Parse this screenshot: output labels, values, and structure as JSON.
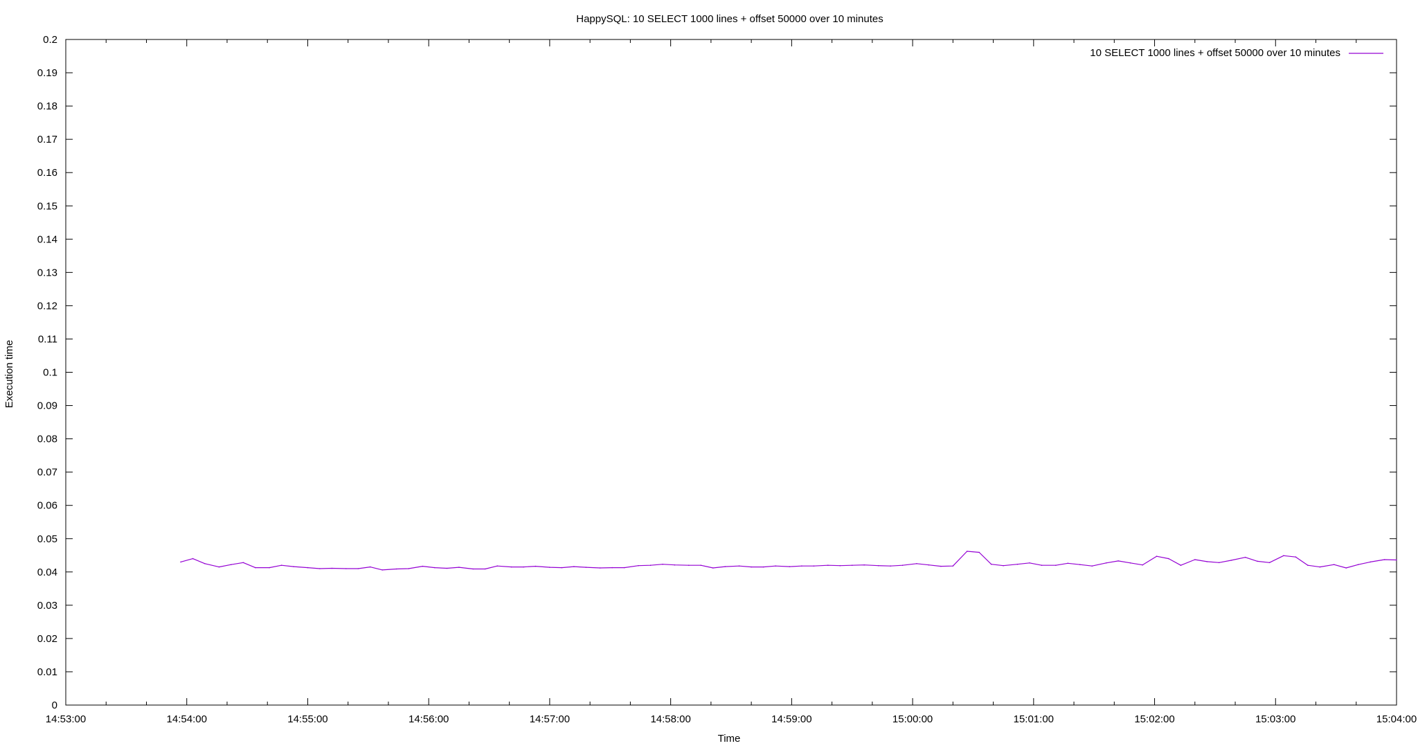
{
  "chart_data": {
    "type": "line",
    "title": "HappySQL: 10 SELECT 1000 lines + offset 50000 over 10 minutes",
    "xlabel": "Time",
    "ylabel": "Execution time",
    "xlim": [
      "14:53:00",
      "15:04:00"
    ],
    "ylim": [
      0,
      0.2
    ],
    "x_ticks": [
      "14:53:00",
      "14:54:00",
      "14:55:00",
      "14:56:00",
      "14:57:00",
      "14:58:00",
      "14:59:00",
      "15:00:00",
      "15:01:00",
      "15:02:00",
      "15:03:00",
      "15:04:00"
    ],
    "y_ticks": [
      "0",
      "0.01",
      "0.02",
      "0.03",
      "0.04",
      "0.05",
      "0.06",
      "0.07",
      "0.08",
      "0.09",
      "0.1",
      "0.11",
      "0.12",
      "0.13",
      "0.14",
      "0.15",
      "0.16",
      "0.17",
      "0.18",
      "0.19",
      "0.2"
    ],
    "grid": false,
    "legend_position": "top-right",
    "series": [
      {
        "name": "10 SELECT 1000 lines + offset 50000 over 10 minutes",
        "color": "#9400d3",
        "x": [
          "14:53:57",
          "14:54:03",
          "14:54:09",
          "14:54:16",
          "14:54:22",
          "14:54:28",
          "14:54:34",
          "14:54:41",
          "14:54:47",
          "14:54:53",
          "14:55:00",
          "14:55:06",
          "14:55:12",
          "14:55:19",
          "14:55:25",
          "14:55:31",
          "14:55:37",
          "14:55:44",
          "14:55:50",
          "14:55:57",
          "14:56:03",
          "14:56:09",
          "14:56:15",
          "14:56:22",
          "14:56:28",
          "14:56:34",
          "14:56:41",
          "14:56:47",
          "14:56:53",
          "14:57:00",
          "14:57:06",
          "14:57:12",
          "14:57:18",
          "14:57:25",
          "14:57:31",
          "14:57:37",
          "14:57:44",
          "14:57:50",
          "14:57:56",
          "14:58:02",
          "14:58:09",
          "14:58:15",
          "14:58:21",
          "14:58:27",
          "14:58:34",
          "14:58:40",
          "14:58:46",
          "14:58:52",
          "14:58:59",
          "14:59:05",
          "14:59:11",
          "14:59:18",
          "14:59:24",
          "14:59:30",
          "14:59:36",
          "14:59:43",
          "14:59:49",
          "14:59:55",
          "15:00:02",
          "15:00:08",
          "15:00:14",
          "15:00:20",
          "15:00:27",
          "15:00:33",
          "15:00:39",
          "15:00:45",
          "15:00:52",
          "15:00:58",
          "15:01:04",
          "15:01:11",
          "15:01:17",
          "15:01:23",
          "15:01:29",
          "15:01:36",
          "15:01:42",
          "15:01:48",
          "15:01:54",
          "15:02:01",
          "15:02:07",
          "15:02:13",
          "15:02:20",
          "15:02:26",
          "15:02:32",
          "15:02:38",
          "15:02:45",
          "15:02:51",
          "15:02:57",
          "15:03:04",
          "15:03:10",
          "15:03:16",
          "15:03:22",
          "15:03:29",
          "15:03:35",
          "15:03:41",
          "15:03:47",
          "15:03:54",
          "15:04:00"
        ],
        "y": [
          0.043,
          0.044,
          0.0425,
          0.0415,
          0.0422,
          0.0428,
          0.0413,
          0.0413,
          0.042,
          0.0416,
          0.0413,
          0.041,
          0.0411,
          0.041,
          0.041,
          0.0415,
          0.0406,
          0.0409,
          0.041,
          0.0417,
          0.0413,
          0.0411,
          0.0414,
          0.0409,
          0.0409,
          0.0418,
          0.0415,
          0.0415,
          0.0417,
          0.0414,
          0.0413,
          0.0416,
          0.0414,
          0.0412,
          0.0413,
          0.0413,
          0.0419,
          0.042,
          0.0423,
          0.0421,
          0.042,
          0.042,
          0.0412,
          0.0416,
          0.0418,
          0.0415,
          0.0415,
          0.0418,
          0.0416,
          0.0418,
          0.0418,
          0.042,
          0.0419,
          0.042,
          0.0421,
          0.0419,
          0.0418,
          0.042,
          0.0425,
          0.0421,
          0.0417,
          0.0418,
          0.0462,
          0.0459,
          0.0423,
          0.0419,
          0.0423,
          0.0427,
          0.042,
          0.042,
          0.0426,
          0.0422,
          0.0418,
          0.0427,
          0.0433,
          0.0427,
          0.0421,
          0.0447,
          0.044,
          0.042,
          0.0437,
          0.0431,
          0.0428,
          0.0435,
          0.0444,
          0.0432,
          0.0428,
          0.0449,
          0.0445,
          0.042,
          0.0415,
          0.0422,
          0.0412,
          0.0422,
          0.043,
          0.0437,
          0.0436
        ]
      }
    ]
  }
}
